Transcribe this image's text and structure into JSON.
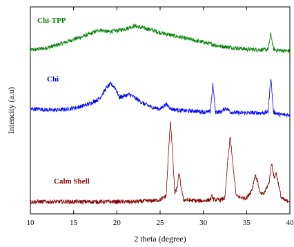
{
  "chart_data": {
    "type": "line",
    "title": "",
    "xlabel": "2 theta (degree)",
    "ylabel": "Intencity (a.u)",
    "xlim": [
      10,
      40
    ],
    "xticks": [
      10,
      15,
      20,
      25,
      30,
      35,
      40
    ],
    "ylim": [
      0,
      100
    ],
    "yticks_shown": false,
    "grid": false,
    "legend": "inline labels",
    "series": [
      {
        "name": "Chi-TPP",
        "color": "#008000",
        "baseline": 80,
        "points": [
          [
            10,
            0.5
          ],
          [
            11,
            1
          ],
          [
            12,
            1.8
          ],
          [
            13,
            3
          ],
          [
            14,
            4.5
          ],
          [
            15,
            6
          ],
          [
            16,
            7.5
          ],
          [
            17,
            9
          ],
          [
            18,
            11
          ],
          [
            19,
            10
          ],
          [
            20,
            10.5
          ],
          [
            21,
            11.5
          ],
          [
            22,
            13
          ],
          [
            23,
            12
          ],
          [
            24,
            11
          ],
          [
            25,
            9.5
          ],
          [
            26,
            8.5
          ],
          [
            27,
            7.5
          ],
          [
            28,
            6.5
          ],
          [
            29,
            5.5
          ],
          [
            30,
            4.5
          ],
          [
            31,
            3.5
          ],
          [
            32,
            2.5
          ],
          [
            33,
            2
          ],
          [
            34,
            1.5
          ],
          [
            35,
            1
          ],
          [
            36,
            0.8
          ],
          [
            37,
            0.6
          ],
          [
            37.5,
            1
          ],
          [
            37.8,
            9
          ],
          [
            38.1,
            1
          ],
          [
            38.5,
            0.5
          ],
          [
            39,
            0.3
          ],
          [
            40,
            0
          ]
        ]
      },
      {
        "name": "Chi",
        "color": "#0000ff",
        "baseline": 46,
        "points": [
          [
            10,
            4
          ],
          [
            11,
            4
          ],
          [
            12,
            3.5
          ],
          [
            13,
            3.5
          ],
          [
            14,
            3.8
          ],
          [
            15,
            4.5
          ],
          [
            16,
            5.5
          ],
          [
            17,
            7
          ],
          [
            18,
            9.5
          ],
          [
            18.8,
            15
          ],
          [
            19.3,
            17
          ],
          [
            19.8,
            15
          ],
          [
            20.3,
            10
          ],
          [
            21,
            11
          ],
          [
            21.5,
            11.5
          ],
          [
            22,
            10
          ],
          [
            23,
            7
          ],
          [
            24,
            5
          ],
          [
            25,
            4
          ],
          [
            25.7,
            6.5
          ],
          [
            26.3,
            4
          ],
          [
            27,
            3.5
          ],
          [
            28,
            3
          ],
          [
            29,
            3
          ],
          [
            30,
            2.5
          ],
          [
            30.8,
            2.5
          ],
          [
            31.1,
            17
          ],
          [
            31.4,
            2.5
          ],
          [
            32,
            2.5
          ],
          [
            32.6,
            4.5
          ],
          [
            33.2,
            2.5
          ],
          [
            34,
            2
          ],
          [
            35,
            2
          ],
          [
            36,
            2
          ],
          [
            37,
            2
          ],
          [
            37.5,
            2.5
          ],
          [
            37.8,
            21
          ],
          [
            38.1,
            2.5
          ],
          [
            38.6,
            1.5
          ],
          [
            39,
            1
          ],
          [
            40,
            1
          ]
        ]
      },
      {
        "name": "Calm Shell",
        "color": "#800000",
        "baseline": 0,
        "points": [
          [
            10,
            2
          ],
          [
            12,
            2
          ],
          [
            14,
            2
          ],
          [
            16,
            2
          ],
          [
            18,
            2
          ],
          [
            20,
            2
          ],
          [
            22,
            2
          ],
          [
            24,
            2.5
          ],
          [
            25,
            3
          ],
          [
            25.7,
            5
          ],
          [
            26,
            30
          ],
          [
            26.2,
            44
          ],
          [
            26.4,
            30
          ],
          [
            26.7,
            6
          ],
          [
            27,
            10
          ],
          [
            27.2,
            17
          ],
          [
            27.4,
            10
          ],
          [
            27.7,
            3
          ],
          [
            28,
            3
          ],
          [
            29,
            2.5
          ],
          [
            30,
            2.5
          ],
          [
            30.8,
            3
          ],
          [
            31,
            5
          ],
          [
            31.2,
            3
          ],
          [
            32,
            3
          ],
          [
            32.5,
            4
          ],
          [
            32.8,
            22
          ],
          [
            33.1,
            36
          ],
          [
            33.4,
            22
          ],
          [
            33.8,
            5
          ],
          [
            34.5,
            4
          ],
          [
            35,
            4
          ],
          [
            35.6,
            8
          ],
          [
            36,
            16
          ],
          [
            36.3,
            12
          ],
          [
            36.6,
            6
          ],
          [
            37,
            6
          ],
          [
            37.3,
            9
          ],
          [
            37.6,
            12
          ],
          [
            37.9,
            22
          ],
          [
            38.2,
            14
          ],
          [
            38.4,
            17
          ],
          [
            38.7,
            11
          ],
          [
            39,
            4
          ],
          [
            39.5,
            2.5
          ],
          [
            40,
            2.5
          ]
        ]
      }
    ]
  }
}
